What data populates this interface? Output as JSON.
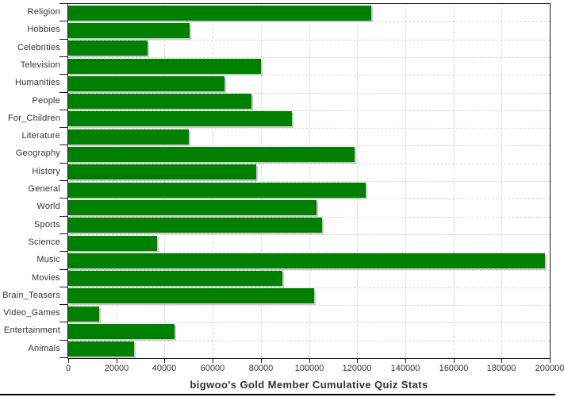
{
  "chart_data": {
    "type": "bar",
    "orientation": "horizontal",
    "title": "bigwoo's Gold Member Cumulative Quiz Stats",
    "categories": [
      "Religion",
      "Hobbies",
      "Celebrities",
      "Television",
      "Humanities",
      "People",
      "For_Children",
      "Literature",
      "Geography",
      "History",
      "General",
      "World",
      "Sports",
      "Science",
      "Music",
      "Movies",
      "Brain_Teasers",
      "Video_Games",
      "Entertainment",
      "Animals"
    ],
    "values": [
      126000,
      50500,
      33000,
      80000,
      65000,
      76000,
      93000,
      50000,
      119000,
      78000,
      123500,
      103000,
      105500,
      37000,
      198000,
      89000,
      102000,
      13000,
      44000,
      27500
    ],
    "xlabel": "",
    "ylabel": "",
    "xlim": [
      0,
      200000
    ],
    "x_ticks": [
      0,
      20000,
      40000,
      60000,
      80000,
      100000,
      120000,
      140000,
      160000,
      180000,
      200000
    ],
    "x_tick_labels": [
      "0",
      "20000",
      "40000",
      "60000",
      "80000",
      "100000",
      "120000",
      "140000",
      "160000",
      "180000",
      "200000"
    ],
    "grid": true,
    "legend": "none",
    "colors": {
      "bar": "#008000",
      "bar_shadow": "#c9c9c9",
      "grid": "#d0d7dc",
      "axis": "#1a1a1a",
      "text": "#333333",
      "background": "#ffffff",
      "bottom_rule": "#000000"
    }
  }
}
